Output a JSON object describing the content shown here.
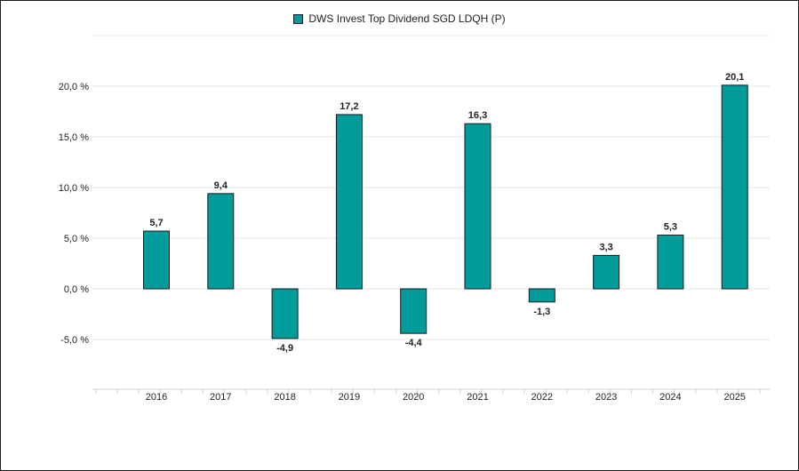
{
  "chart_data": {
    "type": "bar",
    "categories": [
      "2016",
      "2017",
      "2018",
      "2019",
      "2020",
      "2021",
      "2022",
      "2023",
      "2024",
      "2025"
    ],
    "series": [
      {
        "name": "DWS Invest Top Dividend SGD LDQH (P)",
        "values": [
          5.7,
          9.4,
          -4.9,
          17.2,
          -4.4,
          16.3,
          -1.3,
          3.3,
          5.3,
          20.1
        ],
        "labels": [
          "5,7",
          "9,4",
          "-4,9",
          "17,2",
          "-4,4",
          "16,3",
          "-1,3",
          "3,3",
          "5,3",
          "20,1"
        ]
      }
    ],
    "yticks": [
      -5,
      0,
      5,
      10,
      15,
      20
    ],
    "ytick_labels": [
      "-5,0 %",
      "0,0 %",
      "5,0 %",
      "10,0 %",
      "15,0 %",
      "20,0 %"
    ],
    "ylim": [
      -10,
      25
    ],
    "title": "",
    "xlabel": "",
    "ylabel": "",
    "legend_position": "top-center",
    "grid": true,
    "colors": {
      "bar": "#009c9c",
      "bar_border": "#1a1a1a",
      "grid": "#e6e6e6"
    }
  }
}
